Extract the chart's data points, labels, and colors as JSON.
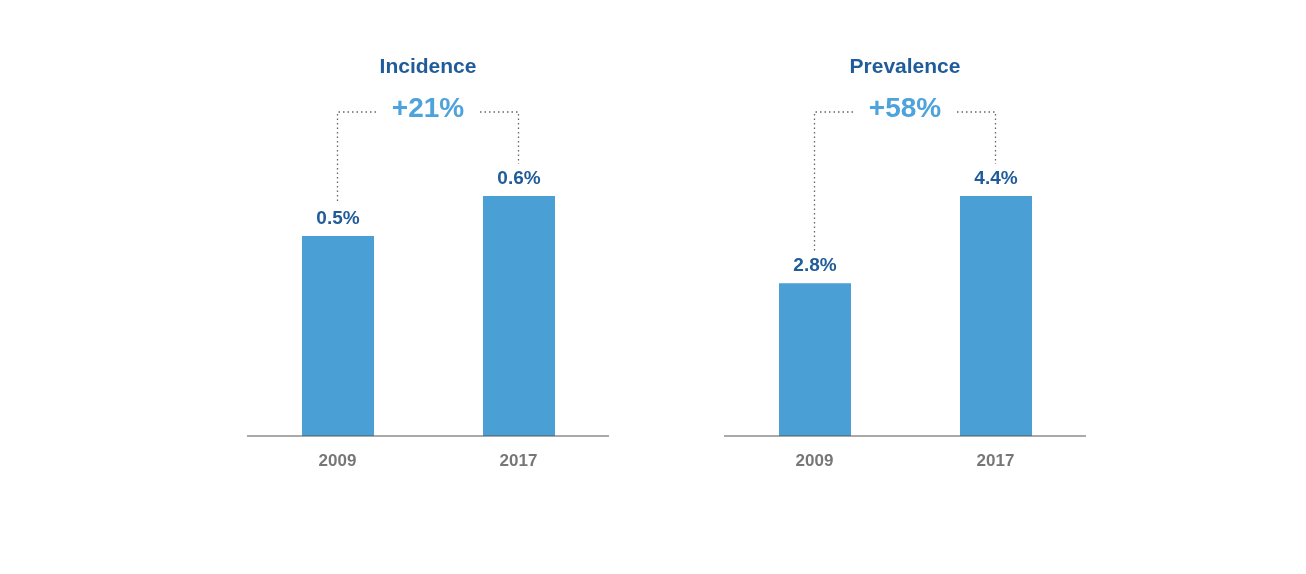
{
  "chart_data": [
    {
      "type": "bar",
      "title": "Incidence",
      "categories": [
        "2009",
        "2017"
      ],
      "values": [
        0.5,
        0.6
      ],
      "value_labels": [
        "0.5%",
        "0.6%"
      ],
      "color": "#4a9fd4",
      "annotations": [
        "+21%"
      ]
    },
    {
      "type": "bar",
      "title": "Prevalence",
      "categories": [
        "2009",
        "2017"
      ],
      "values": [
        2.8,
        4.4
      ],
      "value_labels": [
        "2.8%",
        "4.4%"
      ],
      "color": "#4a9fd4",
      "annotations": [
        "+58%"
      ]
    }
  ]
}
